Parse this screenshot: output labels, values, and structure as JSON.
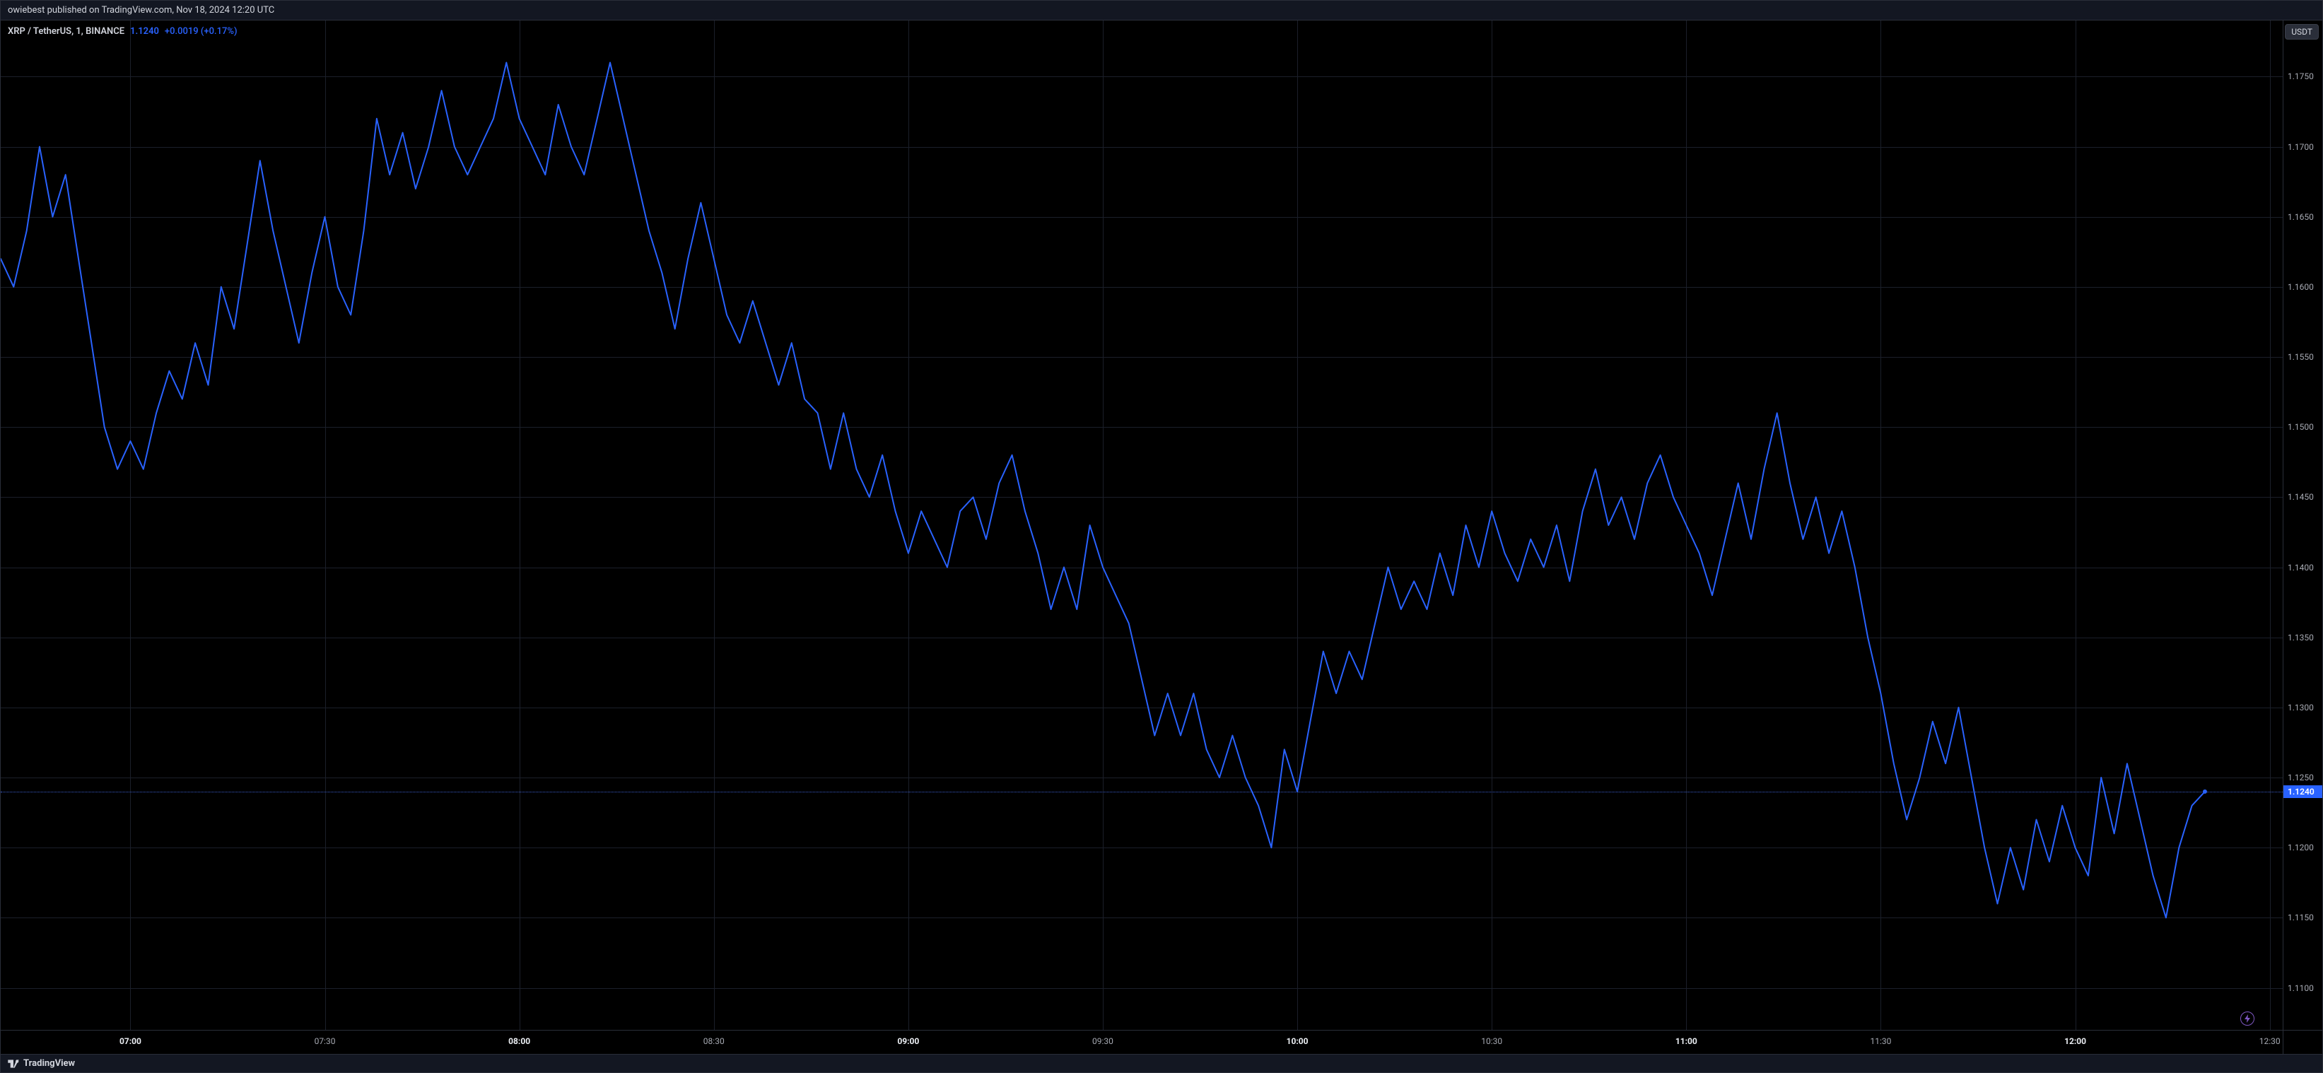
{
  "top": {
    "publish_text": "owiebest published on TradingView.com, Nov 18, 2024 12:20 UTC"
  },
  "symbol": {
    "pair": "XRP / TetherUS, 1, BINANCE",
    "last": "1.1240",
    "change": "+0.0019 (+0.17%)"
  },
  "currency_badge": "USDT",
  "footer_brand": "TradingView",
  "chart": {
    "type": "line",
    "line_color": "#2962ff",
    "line_width": 2,
    "background": "#000000",
    "grid_color": "#1b1f2a",
    "price_line_color": "#3a5fcf",
    "current_price": 1.124,
    "x_domain_min": 400,
    "x_domain_max": 752,
    "xticks": [
      {
        "t": 420,
        "label": "07:00",
        "bold": true
      },
      {
        "t": 450,
        "label": "07:30",
        "bold": false
      },
      {
        "t": 480,
        "label": "08:00",
        "bold": true
      },
      {
        "t": 510,
        "label": "08:30",
        "bold": false
      },
      {
        "t": 540,
        "label": "09:00",
        "bold": true
      },
      {
        "t": 570,
        "label": "09:30",
        "bold": false
      },
      {
        "t": 600,
        "label": "10:00",
        "bold": true
      },
      {
        "t": 630,
        "label": "10:30",
        "bold": false
      },
      {
        "t": 660,
        "label": "11:00",
        "bold": true
      },
      {
        "t": 690,
        "label": "11:30",
        "bold": false
      },
      {
        "t": 720,
        "label": "12:00",
        "bold": true
      },
      {
        "t": 750,
        "label": "12:30",
        "bold": false
      }
    ],
    "y_domain_min": 1.107,
    "y_domain_max": 1.179,
    "yticks": [
      1.175,
      1.17,
      1.165,
      1.16,
      1.155,
      1.15,
      1.145,
      1.14,
      1.135,
      1.13,
      1.125,
      1.12,
      1.115,
      1.11
    ],
    "series": [
      [
        400,
        1.162
      ],
      [
        402,
        1.16
      ],
      [
        404,
        1.164
      ],
      [
        406,
        1.17
      ],
      [
        408,
        1.165
      ],
      [
        410,
        1.168
      ],
      [
        412,
        1.162
      ],
      [
        414,
        1.156
      ],
      [
        416,
        1.15
      ],
      [
        418,
        1.147
      ],
      [
        420,
        1.149
      ],
      [
        422,
        1.147
      ],
      [
        424,
        1.151
      ],
      [
        426,
        1.154
      ],
      [
        428,
        1.152
      ],
      [
        430,
        1.156
      ],
      [
        432,
        1.153
      ],
      [
        434,
        1.16
      ],
      [
        436,
        1.157
      ],
      [
        438,
        1.163
      ],
      [
        440,
        1.169
      ],
      [
        442,
        1.164
      ],
      [
        444,
        1.16
      ],
      [
        446,
        1.156
      ],
      [
        448,
        1.161
      ],
      [
        450,
        1.165
      ],
      [
        452,
        1.16
      ],
      [
        454,
        1.158
      ],
      [
        456,
        1.164
      ],
      [
        458,
        1.172
      ],
      [
        460,
        1.168
      ],
      [
        462,
        1.171
      ],
      [
        464,
        1.167
      ],
      [
        466,
        1.17
      ],
      [
        468,
        1.174
      ],
      [
        470,
        1.17
      ],
      [
        472,
        1.168
      ],
      [
        474,
        1.17
      ],
      [
        476,
        1.172
      ],
      [
        478,
        1.176
      ],
      [
        480,
        1.172
      ],
      [
        482,
        1.17
      ],
      [
        484,
        1.168
      ],
      [
        486,
        1.173
      ],
      [
        488,
        1.17
      ],
      [
        490,
        1.168
      ],
      [
        492,
        1.172
      ],
      [
        494,
        1.176
      ],
      [
        496,
        1.172
      ],
      [
        498,
        1.168
      ],
      [
        500,
        1.164
      ],
      [
        502,
        1.161
      ],
      [
        504,
        1.157
      ],
      [
        506,
        1.162
      ],
      [
        508,
        1.166
      ],
      [
        510,
        1.162
      ],
      [
        512,
        1.158
      ],
      [
        514,
        1.156
      ],
      [
        516,
        1.159
      ],
      [
        518,
        1.156
      ],
      [
        520,
        1.153
      ],
      [
        522,
        1.156
      ],
      [
        524,
        1.152
      ],
      [
        526,
        1.151
      ],
      [
        528,
        1.147
      ],
      [
        530,
        1.151
      ],
      [
        532,
        1.147
      ],
      [
        534,
        1.145
      ],
      [
        536,
        1.148
      ],
      [
        538,
        1.144
      ],
      [
        540,
        1.141
      ],
      [
        542,
        1.144
      ],
      [
        544,
        1.142
      ],
      [
        546,
        1.14
      ],
      [
        548,
        1.144
      ],
      [
        550,
        1.145
      ],
      [
        552,
        1.142
      ],
      [
        554,
        1.146
      ],
      [
        556,
        1.148
      ],
      [
        558,
        1.144
      ],
      [
        560,
        1.141
      ],
      [
        562,
        1.137
      ],
      [
        564,
        1.14
      ],
      [
        566,
        1.137
      ],
      [
        568,
        1.143
      ],
      [
        570,
        1.14
      ],
      [
        572,
        1.138
      ],
      [
        574,
        1.136
      ],
      [
        576,
        1.132
      ],
      [
        578,
        1.128
      ],
      [
        580,
        1.131
      ],
      [
        582,
        1.128
      ],
      [
        584,
        1.131
      ],
      [
        586,
        1.127
      ],
      [
        588,
        1.125
      ],
      [
        590,
        1.128
      ],
      [
        592,
        1.125
      ],
      [
        594,
        1.123
      ],
      [
        596,
        1.12
      ],
      [
        598,
        1.127
      ],
      [
        600,
        1.124
      ],
      [
        602,
        1.129
      ],
      [
        604,
        1.134
      ],
      [
        606,
        1.131
      ],
      [
        608,
        1.134
      ],
      [
        610,
        1.132
      ],
      [
        612,
        1.136
      ],
      [
        614,
        1.14
      ],
      [
        616,
        1.137
      ],
      [
        618,
        1.139
      ],
      [
        620,
        1.137
      ],
      [
        622,
        1.141
      ],
      [
        624,
        1.138
      ],
      [
        626,
        1.143
      ],
      [
        628,
        1.14
      ],
      [
        630,
        1.144
      ],
      [
        632,
        1.141
      ],
      [
        634,
        1.139
      ],
      [
        636,
        1.142
      ],
      [
        638,
        1.14
      ],
      [
        640,
        1.143
      ],
      [
        642,
        1.139
      ],
      [
        644,
        1.144
      ],
      [
        646,
        1.147
      ],
      [
        648,
        1.143
      ],
      [
        650,
        1.145
      ],
      [
        652,
        1.142
      ],
      [
        654,
        1.146
      ],
      [
        656,
        1.148
      ],
      [
        658,
        1.145
      ],
      [
        660,
        1.143
      ],
      [
        662,
        1.141
      ],
      [
        664,
        1.138
      ],
      [
        666,
        1.142
      ],
      [
        668,
        1.146
      ],
      [
        670,
        1.142
      ],
      [
        672,
        1.147
      ],
      [
        674,
        1.151
      ],
      [
        676,
        1.146
      ],
      [
        678,
        1.142
      ],
      [
        680,
        1.145
      ],
      [
        682,
        1.141
      ],
      [
        684,
        1.144
      ],
      [
        686,
        1.14
      ],
      [
        688,
        1.135
      ],
      [
        690,
        1.131
      ],
      [
        692,
        1.126
      ],
      [
        694,
        1.122
      ],
      [
        696,
        1.125
      ],
      [
        698,
        1.129
      ],
      [
        700,
        1.126
      ],
      [
        702,
        1.13
      ],
      [
        704,
        1.125
      ],
      [
        706,
        1.12
      ],
      [
        708,
        1.116
      ],
      [
        710,
        1.12
      ],
      [
        712,
        1.117
      ],
      [
        714,
        1.122
      ],
      [
        716,
        1.119
      ],
      [
        718,
        1.123
      ],
      [
        720,
        1.12
      ],
      [
        722,
        1.118
      ],
      [
        724,
        1.125
      ],
      [
        726,
        1.121
      ],
      [
        728,
        1.126
      ],
      [
        730,
        1.122
      ],
      [
        732,
        1.118
      ],
      [
        734,
        1.115
      ],
      [
        736,
        1.12
      ],
      [
        738,
        1.123
      ],
      [
        740,
        1.124
      ]
    ]
  }
}
